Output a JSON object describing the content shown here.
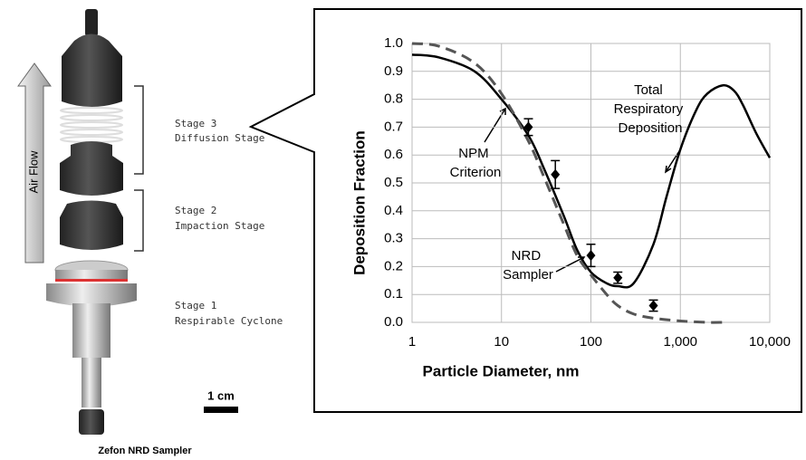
{
  "chart_data": {
    "type": "line",
    "x_label": "Particle Diameter, nm",
    "y_label": "Deposition Fraction",
    "xscale": "log",
    "xlim": [
      1,
      10000
    ],
    "xticks": [
      1,
      10,
      100,
      {
        "value": 1000,
        "label": "1,000"
      },
      {
        "value": 10000,
        "label": "10,000"
      }
    ],
    "ylim": [
      0,
      1
    ],
    "yticks": [
      {
        "value": 0,
        "label": "0.0"
      },
      0.1,
      0.2,
      0.3,
      0.4,
      0.5,
      0.6,
      0.7,
      0.8,
      0.9,
      {
        "value": 1,
        "label": "1.0"
      }
    ],
    "grid": true,
    "series": [
      {
        "name": "Total Respiratory Deposition",
        "color": "#000000",
        "style": "solid",
        "x": [
          1,
          2,
          5,
          10,
          20,
          30,
          50,
          70,
          100,
          150,
          200,
          300,
          500,
          700,
          1000,
          1500,
          2000,
          3000,
          4000,
          5000,
          7000,
          10000
        ],
        "values": [
          0.96,
          0.95,
          0.9,
          0.8,
          0.67,
          0.55,
          0.38,
          0.26,
          0.18,
          0.14,
          0.13,
          0.14,
          0.28,
          0.45,
          0.62,
          0.76,
          0.82,
          0.85,
          0.83,
          0.78,
          0.68,
          0.59
        ]
      },
      {
        "name": "NPM Criterion",
        "color": "#555555",
        "style": "dashed",
        "x": [
          1,
          2,
          5,
          10,
          20,
          30,
          50,
          70,
          100,
          150,
          200,
          300,
          500,
          1000,
          2000,
          3000
        ],
        "values": [
          1.0,
          0.99,
          0.93,
          0.82,
          0.65,
          0.52,
          0.35,
          0.24,
          0.17,
          0.1,
          0.06,
          0.03,
          0.015,
          0.005,
          0,
          0
        ]
      },
      {
        "name": "NRD Sampler",
        "color": "#000000",
        "style": "points",
        "x": [
          20,
          40,
          100,
          200,
          500
        ],
        "values": [
          0.7,
          0.53,
          0.24,
          0.16,
          0.06
        ],
        "errors": [
          0.03,
          0.05,
          0.04,
          0.02,
          0.02
        ]
      }
    ]
  },
  "diagram": {
    "air_flow": "Air Flow",
    "stages": [
      {
        "stage": "Stage 3",
        "name": "Diffusion Stage"
      },
      {
        "stage": "Stage 2",
        "name": "Impaction Stage"
      },
      {
        "stage": "Stage 1",
        "name": "Respirable Cyclone"
      }
    ],
    "scale_bar": "1 cm",
    "caption": "Zefon NRD Sampler"
  }
}
